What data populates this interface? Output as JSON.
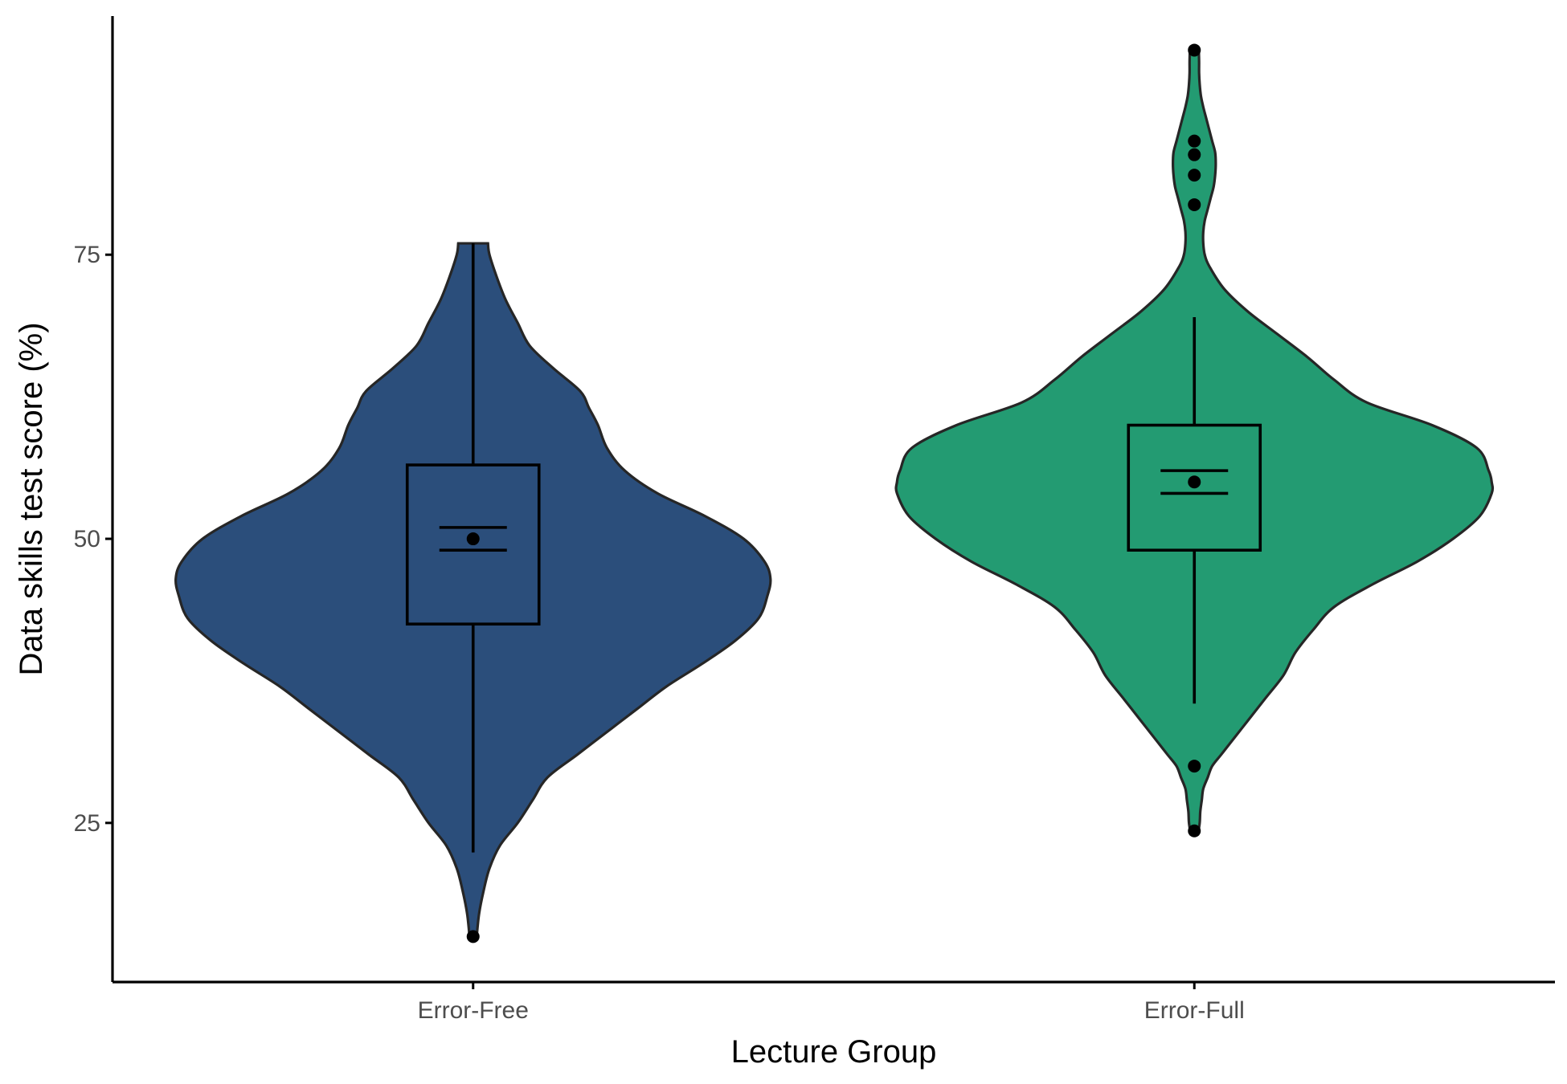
{
  "chart_data": {
    "type": "violin",
    "xlabel": "Lecture Group",
    "ylabel": "Data skills test score (%)",
    "categories": [
      "Error-Free",
      "Error-Full"
    ],
    "yticks": [
      25,
      50,
      75
    ],
    "ylim": [
      11,
      96
    ],
    "legend": "none",
    "grid": false,
    "groups": [
      {
        "name": "Error-Free",
        "color": "#2B4E7B",
        "range": [
          15,
          76
        ],
        "box": {
          "lower_whisker": 22.4,
          "q1": 42.5,
          "median": 50,
          "q3": 56.5,
          "upper_whisker": 76
        },
        "mean": 50,
        "se": [
          49.0,
          51.0
        ],
        "outliers": [
          15
        ],
        "density": [
          [
            15,
            0.012
          ],
          [
            17,
            0.02
          ],
          [
            19,
            0.035
          ],
          [
            21,
            0.055
          ],
          [
            23,
            0.09
          ],
          [
            25,
            0.15
          ],
          [
            27,
            0.2
          ],
          [
            29,
            0.25
          ],
          [
            31,
            0.35
          ],
          [
            33,
            0.45
          ],
          [
            35,
            0.55
          ],
          [
            37,
            0.65
          ],
          [
            39,
            0.77
          ],
          [
            41,
            0.88
          ],
          [
            43,
            0.96
          ],
          [
            45,
            0.99
          ],
          [
            46.5,
            1.0
          ],
          [
            48,
            0.98
          ],
          [
            50,
            0.91
          ],
          [
            52,
            0.78
          ],
          [
            54,
            0.62
          ],
          [
            56,
            0.51
          ],
          [
            58,
            0.45
          ],
          [
            60,
            0.42
          ],
          [
            61.5,
            0.39
          ],
          [
            63,
            0.36
          ],
          [
            65,
            0.27
          ],
          [
            67,
            0.19
          ],
          [
            69,
            0.15
          ],
          [
            71,
            0.11
          ],
          [
            73,
            0.08
          ],
          [
            75,
            0.055
          ],
          [
            76,
            0.05
          ]
        ]
      },
      {
        "name": "Error-Full",
        "color": "#239B72",
        "range": [
          24,
          93
        ],
        "box": {
          "lower_whisker": 35.5,
          "q1": 49,
          "median": 49,
          "q3": 60,
          "upper_whisker": 69.5
        },
        "mean": 55,
        "se": [
          54.0,
          56.0
        ],
        "outliers": [
          30,
          24.3,
          79.4,
          82,
          83.8,
          85,
          93
        ],
        "density": [
          [
            24,
            0.012
          ],
          [
            25,
            0.018
          ],
          [
            26,
            0.02
          ],
          [
            27,
            0.025
          ],
          [
            28,
            0.03
          ],
          [
            29,
            0.045
          ],
          [
            30,
            0.06
          ],
          [
            31,
            0.09
          ],
          [
            32,
            0.12
          ],
          [
            33,
            0.15
          ],
          [
            34,
            0.18
          ],
          [
            36,
            0.24
          ],
          [
            38,
            0.3
          ],
          [
            40,
            0.34
          ],
          [
            42,
            0.4
          ],
          [
            44,
            0.47
          ],
          [
            46,
            0.6
          ],
          [
            48,
            0.75
          ],
          [
            50,
            0.87
          ],
          [
            52,
            0.96
          ],
          [
            54,
            1.0
          ],
          [
            55,
            1.0
          ],
          [
            56,
            0.99
          ],
          [
            58,
            0.95
          ],
          [
            60,
            0.8
          ],
          [
            62,
            0.58
          ],
          [
            64,
            0.47
          ],
          [
            66,
            0.38
          ],
          [
            68,
            0.28
          ],
          [
            70,
            0.18
          ],
          [
            72,
            0.1
          ],
          [
            74,
            0.05
          ],
          [
            75,
            0.035
          ],
          [
            76,
            0.03
          ],
          [
            77,
            0.03
          ],
          [
            78,
            0.035
          ],
          [
            79,
            0.045
          ],
          [
            80,
            0.055
          ],
          [
            81,
            0.065
          ],
          [
            82,
            0.07
          ],
          [
            83,
            0.072
          ],
          [
            84,
            0.07
          ],
          [
            85,
            0.06
          ],
          [
            86,
            0.05
          ],
          [
            87,
            0.04
          ],
          [
            88,
            0.03
          ],
          [
            89,
            0.022
          ],
          [
            90,
            0.018
          ],
          [
            91,
            0.016
          ],
          [
            92,
            0.016
          ],
          [
            93,
            0.015
          ]
        ]
      }
    ]
  }
}
